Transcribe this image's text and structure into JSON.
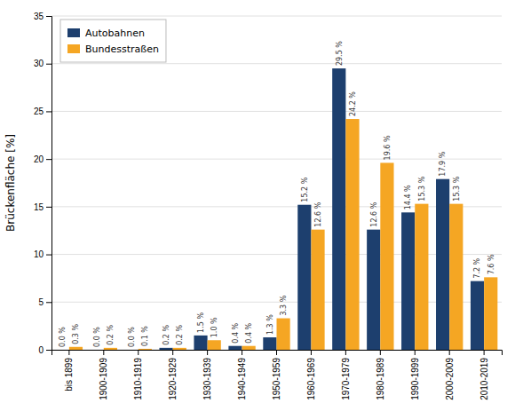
{
  "chart_data": {
    "type": "bar",
    "categories": [
      "bis 1899",
      "1900-1909",
      "1910-1919",
      "1920-1929",
      "1930-1939",
      "1940-1949",
      "1950-1959",
      "1960-1969",
      "1970-1979",
      "1980-1989",
      "1990-1999",
      "2000-2009",
      "2010-2019"
    ],
    "series": [
      {
        "name": "Autobahnen",
        "color": "#1d3f6e",
        "values": [
          0.0,
          0.0,
          0.0,
          0.2,
          1.5,
          0.4,
          1.3,
          15.2,
          29.5,
          12.6,
          14.4,
          17.9,
          7.2
        ],
        "value_labels": [
          "0.0 %",
          "0.0 %",
          "0.0 %",
          "0.2 %",
          "1.5 %",
          "0.4 %",
          "1.3 %",
          "15.2 %",
          "29.5 %",
          "12.6 %",
          "14.4 %",
          "17.9 %",
          "7.2 %"
        ]
      },
      {
        "name": "Bundesstraßen",
        "color": "#f5a623",
        "values": [
          0.3,
          0.2,
          0.1,
          0.2,
          1.0,
          0.4,
          3.3,
          12.6,
          24.2,
          19.6,
          15.3,
          15.3,
          7.6
        ],
        "value_labels": [
          "0.3 %",
          "0.2 %",
          "0.1 %",
          "0.2 %",
          "1.0 %",
          "0.4 %",
          "3.3 %",
          "12.6 %",
          "24.2 %",
          "19.6 %",
          "15.3 %",
          "15.3 %",
          "7.6 %"
        ]
      }
    ],
    "y_label": "Brückenfläche [%]",
    "ylim": [
      0,
      35
    ],
    "yticks": [
      0,
      5,
      10,
      15,
      20,
      25,
      30,
      35
    ],
    "grid": true,
    "legend": "upper left",
    "data_labels": true
  }
}
